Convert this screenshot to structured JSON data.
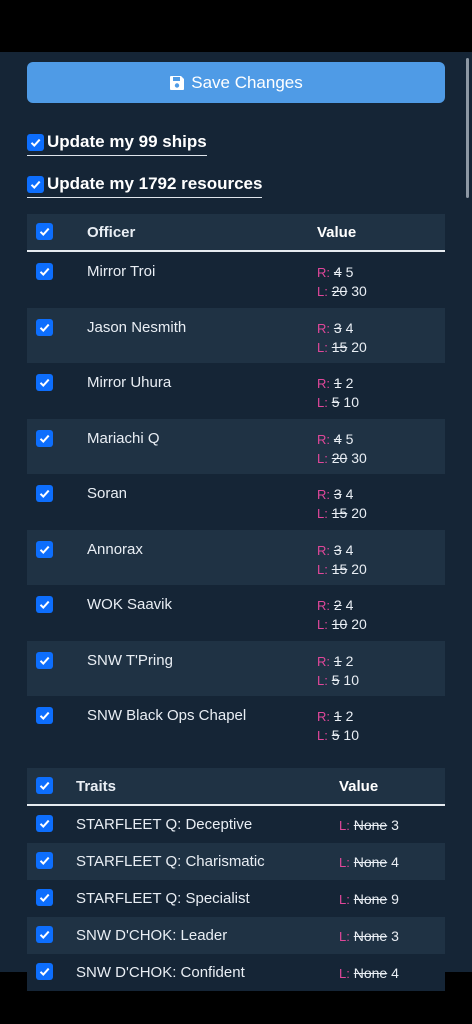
{
  "save_button": {
    "label": "Save Changes"
  },
  "options": {
    "ships": "Update my 99 ships",
    "resources": "Update my 1792 resources"
  },
  "officers": {
    "headers": {
      "name": "Officer",
      "value": "Value"
    },
    "rows": [
      {
        "name": "Mirror Troi",
        "r_old": "4",
        "r_new": "5",
        "l_old": "20",
        "l_new": "30"
      },
      {
        "name": "Jason Nesmith",
        "r_old": "3",
        "r_new": "4",
        "l_old": "15",
        "l_new": "20"
      },
      {
        "name": "Mirror Uhura",
        "r_old": "1",
        "r_new": "2",
        "l_old": "5",
        "l_new": "10"
      },
      {
        "name": "Mariachi Q",
        "r_old": "4",
        "r_new": "5",
        "l_old": "20",
        "l_new": "30"
      },
      {
        "name": "Soran",
        "r_old": "3",
        "r_new": "4",
        "l_old": "15",
        "l_new": "20"
      },
      {
        "name": "Annorax",
        "r_old": "3",
        "r_new": "4",
        "l_old": "15",
        "l_new": "20"
      },
      {
        "name": "WOK Saavik",
        "r_old": "2",
        "r_new": "4",
        "l_old": "10",
        "l_new": "20"
      },
      {
        "name": "SNW T'Pring",
        "r_old": "1",
        "r_new": "2",
        "l_old": "5",
        "l_new": "10"
      },
      {
        "name": "SNW Black Ops Chapel",
        "r_old": "1",
        "r_new": "2",
        "l_old": "5",
        "l_new": "10"
      }
    ]
  },
  "traits": {
    "headers": {
      "name": "Traits",
      "value": "Value"
    },
    "rows": [
      {
        "name": "STARFLEET Q: Deceptive",
        "l_old": "None",
        "l_new": "3"
      },
      {
        "name": "STARFLEET Q: Charismatic",
        "l_old": "None",
        "l_new": "4"
      },
      {
        "name": "STARFLEET Q: Specialist",
        "l_old": "None",
        "l_new": "9"
      },
      {
        "name": "SNW D'CHOK: Leader",
        "l_old": "None",
        "l_new": "3"
      },
      {
        "name": "SNW D'CHOK: Confident",
        "l_old": "None",
        "l_new": "4"
      }
    ]
  },
  "labels": {
    "r": "R:",
    "l": "L:"
  },
  "colors": {
    "accent": "#4f9be6",
    "checkbox": "#0d6efd",
    "label_pink": "#e0479a",
    "background": "#152536"
  }
}
